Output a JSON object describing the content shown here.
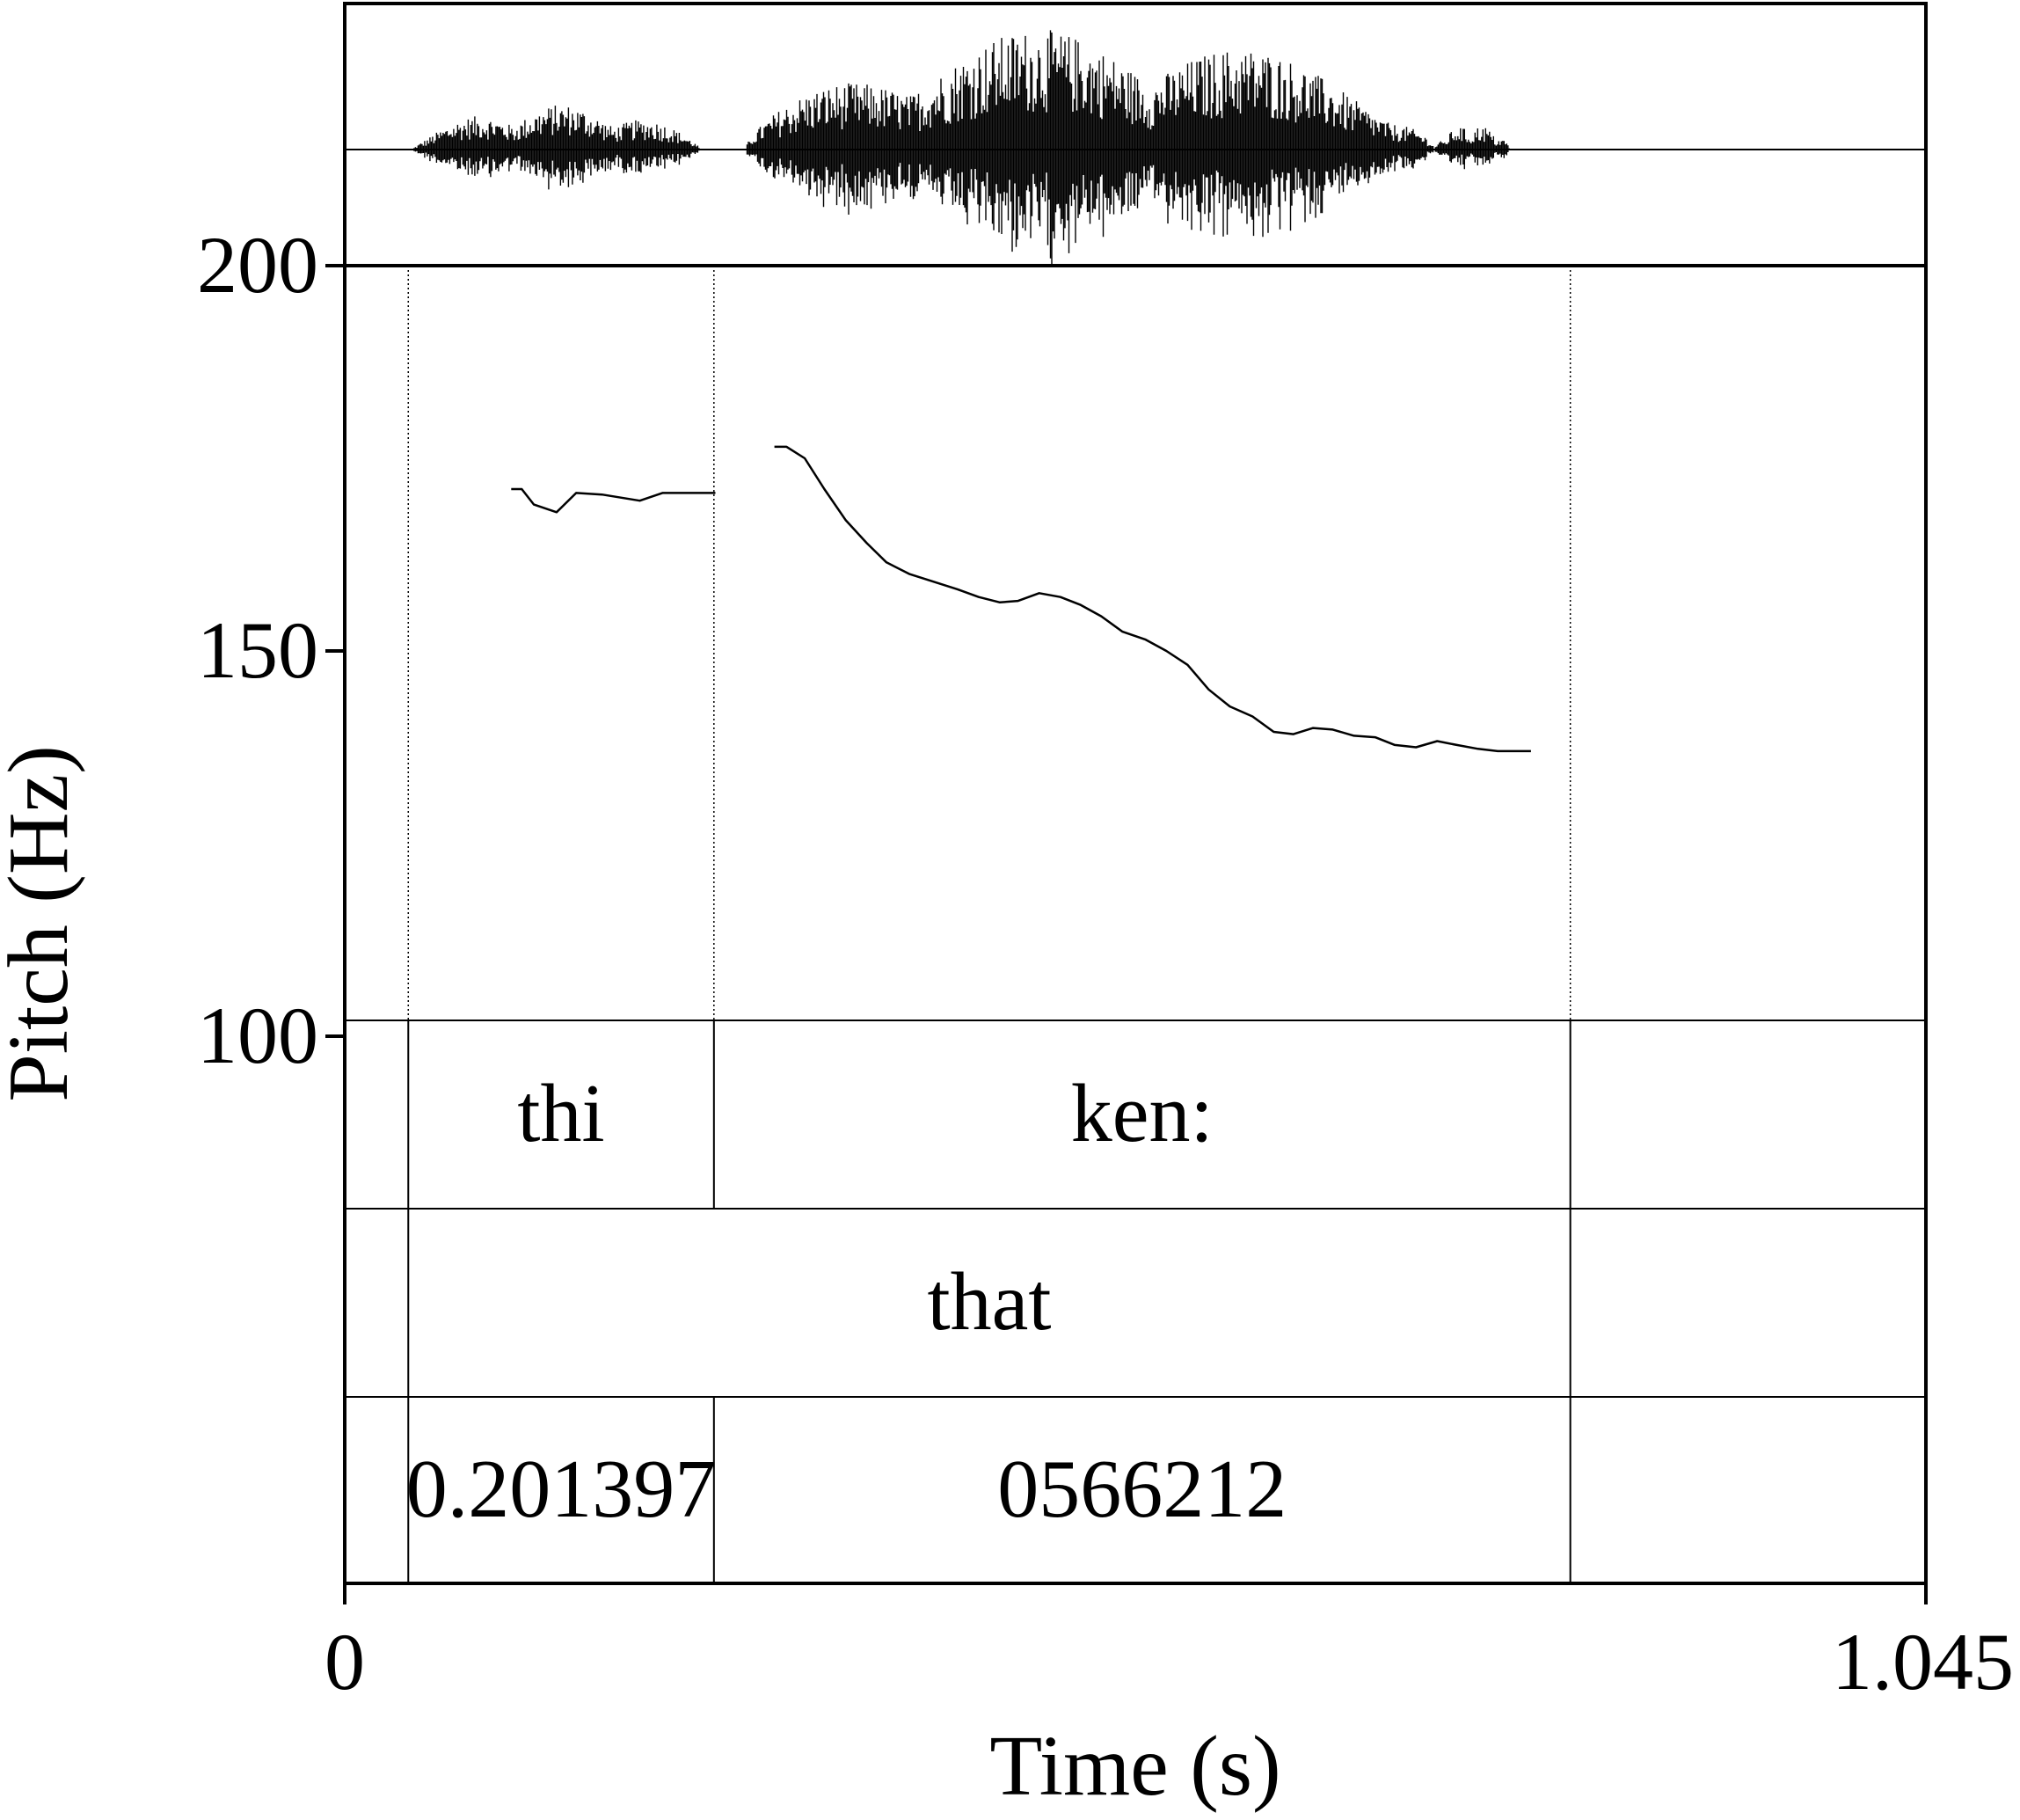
{
  "chart_data": {
    "type": "line",
    "title": "",
    "xlabel": "Time (s)",
    "ylabel": "Pitch (Hz)",
    "xlim": [
      0,
      1.045
    ],
    "ylim": [
      70,
      200
    ],
    "x_tick_labels": [
      "0",
      "1.045"
    ],
    "x_ticks": [
      0,
      1.045
    ],
    "y_tick_labels": [
      "100",
      "150",
      "200"
    ],
    "y_ticks": [
      100,
      150,
      200
    ],
    "grid": false,
    "legend": "none",
    "waveform": {
      "segments": [
        {
          "start": 0.045,
          "end": 0.235,
          "amplitude": 0.35
        },
        {
          "start": 0.265,
          "end": 0.72,
          "amplitude": 0.95
        },
        {
          "start": 0.72,
          "end": 0.77,
          "amplitude": 0.2
        }
      ]
    },
    "pitch_contours": [
      {
        "x": [
          0.11,
          0.117,
          0.125,
          0.14,
          0.153,
          0.17,
          0.195,
          0.21,
          0.23,
          0.245
        ],
        "y": [
          171,
          171,
          169,
          168,
          170.5,
          170.3,
          169.5,
          170.5,
          170.5,
          170.5
        ]
      },
      {
        "x": [
          0.284,
          0.292,
          0.304,
          0.317,
          0.331,
          0.345,
          0.358,
          0.373,
          0.389,
          0.405,
          0.419,
          0.433,
          0.445,
          0.459,
          0.473,
          0.486,
          0.5,
          0.514,
          0.529,
          0.543,
          0.557,
          0.571,
          0.585,
          0.6,
          0.614,
          0.627,
          0.64,
          0.653,
          0.667,
          0.681,
          0.694,
          0.708,
          0.722,
          0.735,
          0.749,
          0.762,
          0.775,
          0.784
        ],
        "y": [
          176.5,
          176.5,
          175,
          171,
          167,
          164,
          161.5,
          160,
          159,
          158,
          157,
          156.3,
          156.5,
          157.5,
          157,
          156,
          154.5,
          152.5,
          151.5,
          150,
          148.2,
          145,
          142.8,
          141.5,
          139.5,
          139.2,
          140,
          139.8,
          139,
          138.8,
          137.8,
          137.5,
          138.3,
          137.8,
          137.3,
          137,
          137,
          137
        ]
      }
    ],
    "boundaries": [
      0.042,
      0.244,
      0.81
    ],
    "tiers": [
      {
        "name": "",
        "intervals": [
          {
            "start": 0,
            "end": 0.042,
            "text": ""
          },
          {
            "start": 0.042,
            "end": 0.244,
            "text": "thi"
          },
          {
            "start": 0.244,
            "end": 0.81,
            "text": "ken:"
          },
          {
            "start": 0.81,
            "end": 1.045,
            "text": ""
          }
        ]
      },
      {
        "name": "",
        "intervals": [
          {
            "start": 0,
            "end": 0.042,
            "text": ""
          },
          {
            "start": 0.042,
            "end": 0.81,
            "text": "that"
          },
          {
            "start": 0.81,
            "end": 1.045,
            "text": ""
          }
        ]
      },
      {
        "name": "",
        "intervals": [
          {
            "start": 0,
            "end": 0.042,
            "text": ""
          },
          {
            "start": 0.042,
            "end": 0.244,
            "text": "0.201397"
          },
          {
            "start": 0.244,
            "end": 0.81,
            "text": "0566212"
          },
          {
            "start": 0.81,
            "end": 1.045,
            "text": ""
          }
        ]
      }
    ]
  }
}
